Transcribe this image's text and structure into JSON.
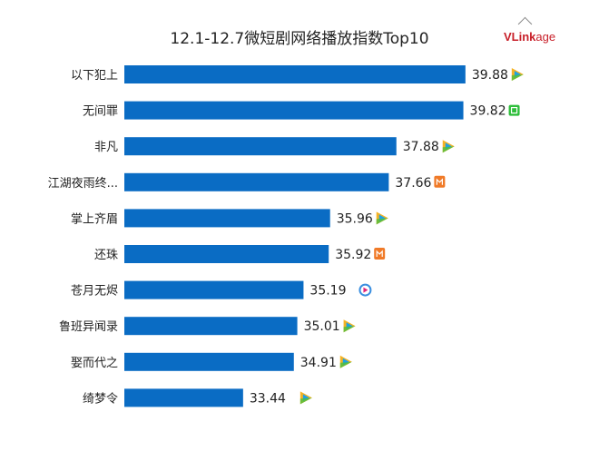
{
  "chart_data": {
    "type": "bar",
    "orientation": "horizontal",
    "title": "12.1-12.7微短剧网络播放指数Top10",
    "categories": [
      "以下犯上",
      "无间罪",
      "非凡",
      "江湖夜雨终...",
      "掌上齐眉",
      "还珠",
      "苍月无烬",
      "鲁班异闻录",
      "娶而代之",
      "绮梦令"
    ],
    "values": [
      39.88,
      39.82,
      37.88,
      37.66,
      35.96,
      35.92,
      35.19,
      35.01,
      34.91,
      33.44
    ],
    "platforms": [
      "tencent-video",
      "iqiyi",
      "tencent-video",
      "mango-tv",
      "tencent-video",
      "mango-tv",
      "youku",
      "tencent-video",
      "tencent-video",
      "tencent-video"
    ],
    "xlim": [
      30,
      41
    ],
    "xlabel": "",
    "ylabel": "",
    "grid": false,
    "legend": "none",
    "bar_color": "#0a6cc4"
  },
  "logo": {
    "main": "VLink",
    "suffix": "age"
  }
}
